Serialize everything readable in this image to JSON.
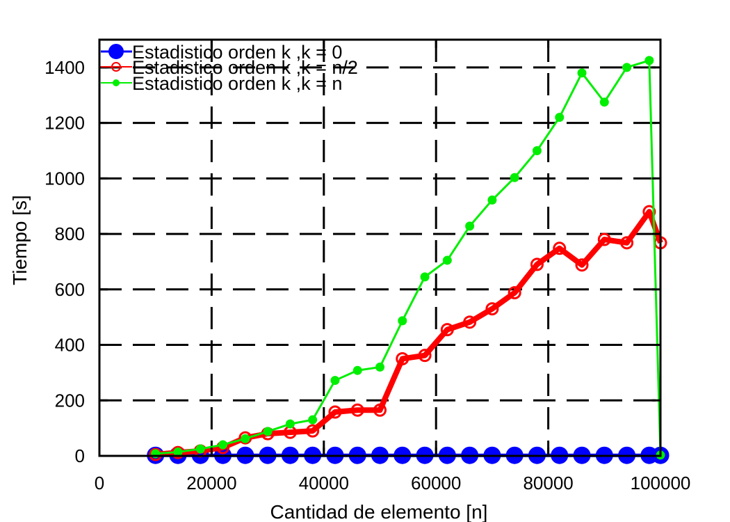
{
  "chart_data": {
    "type": "line",
    "title": "",
    "xlabel": "Cantidad de elemento [n]",
    "ylabel": "Tiempo [s]",
    "xlim": [
      0,
      100000
    ],
    "ylim": [
      0,
      1500
    ],
    "xticks": [
      0,
      20000,
      40000,
      60000,
      80000,
      100000
    ],
    "yticks": [
      0,
      200,
      400,
      600,
      800,
      1000,
      1200,
      1400
    ],
    "grid": true,
    "legend_position": "top-left",
    "x": [
      10000,
      14000,
      18000,
      22000,
      26000,
      30000,
      34000,
      38000,
      42000,
      46000,
      50000,
      54000,
      58000,
      62000,
      66000,
      70000,
      74000,
      78000,
      82000,
      86000,
      90000,
      94000,
      98000,
      100000
    ],
    "series": [
      {
        "name": "Estadistico orden k ,k = 0",
        "color": "#0000ff",
        "values": [
          2,
          2,
          2,
          2,
          2,
          2,
          2,
          2,
          2,
          2,
          2,
          2,
          2,
          2,
          2,
          2,
          2,
          2,
          2,
          2,
          2,
          2,
          2,
          2
        ]
      },
      {
        "name": "Estadistico orden k ,k = n/2",
        "color": "#ff0000",
        "values": [
          5,
          12,
          18,
          30,
          65,
          80,
          85,
          90,
          158,
          165,
          165,
          350,
          362,
          455,
          482,
          530,
          588,
          690,
          748,
          688,
          780,
          768,
          880,
          768
        ]
      },
      {
        "name": "Estadistico orden k ,k = n",
        "color": "#00ee00",
        "values": [
          8,
          14,
          25,
          40,
          62,
          88,
          115,
          130,
          272,
          308,
          320,
          487,
          645,
          705,
          828,
          922,
          1003,
          1100,
          1220,
          1380,
          1275,
          1400,
          1425,
          3
        ]
      }
    ]
  }
}
